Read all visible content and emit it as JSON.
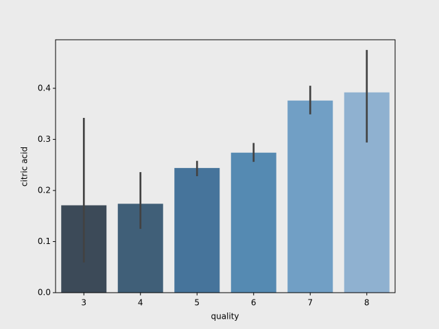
{
  "chart_data": {
    "type": "bar",
    "xlabel": "quality",
    "ylabel": "citric acid",
    "categories": [
      "3",
      "4",
      "5",
      "6",
      "7",
      "8"
    ],
    "values": [
      0.171,
      0.174,
      0.244,
      0.274,
      0.376,
      0.392
    ],
    "ci_low": [
      0.059,
      0.125,
      0.228,
      0.256,
      0.349,
      0.294
    ],
    "ci_high": [
      0.342,
      0.236,
      0.258,
      0.293,
      0.405,
      0.475
    ],
    "colors": [
      "#3c4a58",
      "#405f78",
      "#46749b",
      "#558ab2",
      "#719fc5",
      "#8fb1d0"
    ],
    "error_color": "#424242",
    "ylim": [
      0,
      0.495
    ],
    "yticks": [
      {
        "value": 0,
        "label": "0.0"
      },
      0.1,
      0.2,
      0.3,
      0.4
    ]
  }
}
